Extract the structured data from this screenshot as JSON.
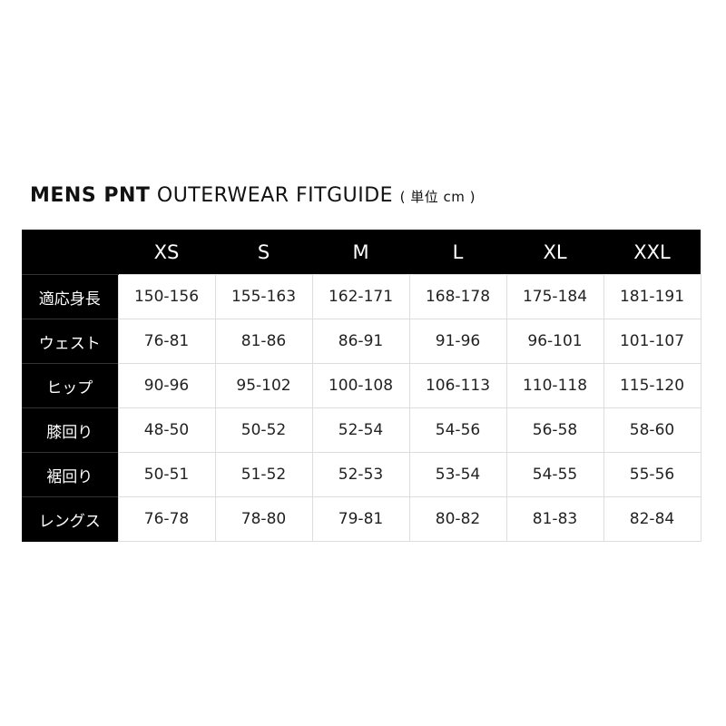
{
  "title": {
    "bold": "MENS PNT",
    "regular": "OUTERWEAR FITGUIDE",
    "unit": "( 単位 cm )"
  },
  "table": {
    "sizes": [
      "XS",
      "S",
      "M",
      "L",
      "XL",
      "XXL"
    ],
    "rows": [
      {
        "label": "適応身長",
        "values": [
          "150-156",
          "155-163",
          "162-171",
          "168-178",
          "175-184",
          "181-191"
        ]
      },
      {
        "label": "ウェスト",
        "values": [
          "76-81",
          "81-86",
          "86-91",
          "91-96",
          "96-101",
          "101-107"
        ]
      },
      {
        "label": "ヒップ",
        "values": [
          "90-96",
          "95-102",
          "100-108",
          "106-113",
          "110-118",
          "115-120"
        ]
      },
      {
        "label": "膝回り",
        "values": [
          "48-50",
          "50-52",
          "52-54",
          "54-56",
          "56-58",
          "58-60"
        ]
      },
      {
        "label": "裾回り",
        "values": [
          "50-51",
          "51-52",
          "52-53",
          "53-54",
          "54-55",
          "55-56"
        ]
      },
      {
        "label": "レングス",
        "values": [
          "76-78",
          "78-80",
          "79-81",
          "80-82",
          "81-83",
          "82-84"
        ]
      }
    ]
  }
}
